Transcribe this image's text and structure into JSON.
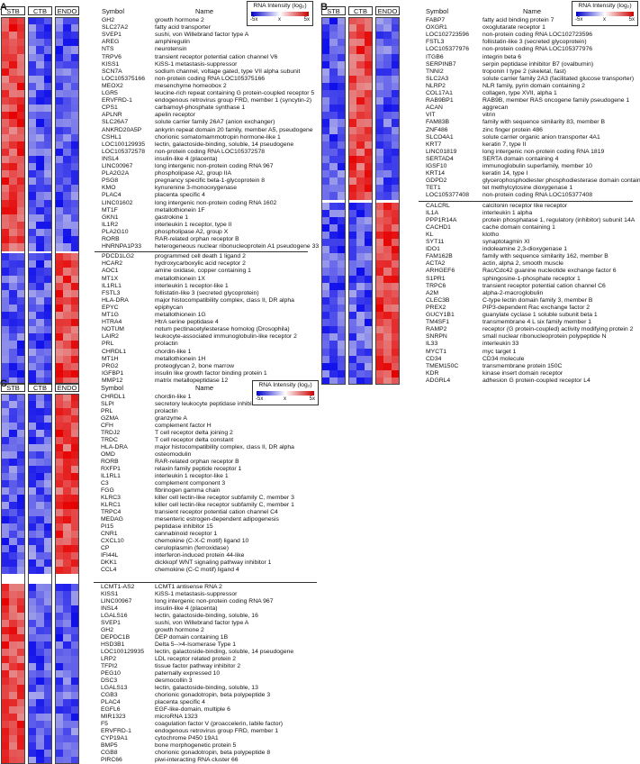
{
  "legend": {
    "title": "RNA Intensity (log₂)",
    "min": "-5x",
    "mid": "x",
    "max": "5x"
  },
  "col_headers": {
    "symbol": "Symbol",
    "name": "Name"
  },
  "panels": [
    {
      "label": "A",
      "groups": [
        "STB",
        "CTB",
        "ENDO"
      ],
      "pattern": [
        "hi",
        "lo",
        "lo"
      ],
      "pattern2": [
        "lo",
        "lo",
        "hi"
      ],
      "split": 32,
      "genes": [
        [
          "GH2",
          "growth hormone 2"
        ],
        [
          "SLC27A2",
          "fatty acid transporter"
        ],
        [
          "SVEP1",
          "sushi, von Willebrand factor type A"
        ],
        [
          "AREG",
          "amphiregulin"
        ],
        [
          "NTS",
          "neurotensin"
        ],
        [
          "TRPV6",
          "transient receptor potential cation channel V6"
        ],
        [
          "KISS1",
          "KiSS-1 metastasis-suppressor"
        ],
        [
          "SCN7A",
          "sodium channel, voltage gated, type VII alpha subunit"
        ],
        [
          "LOC105375166",
          "non-protein coding RNA LOC105375166"
        ],
        [
          "MEOX2",
          "mesenchyme homeobox 2"
        ],
        [
          "LGR5",
          "leucine-rich repeat containing G protein-coupled receptor 5"
        ],
        [
          "ERVFRD-1",
          "endogenous retrovirus group FRD, member 1 (syncytin-2)"
        ],
        [
          "CPS1",
          "carbamoyl-phosphate synthase 1"
        ],
        [
          "APLNR",
          "apelin receptor"
        ],
        [
          "SLC26A7",
          "solute carrier family 26A7 (anion exchanger)"
        ],
        [
          "ANKRD20A5P",
          "ankyrin repeat domain 20 family, member A5, pseudogene"
        ],
        [
          "CSHL1",
          "chorionic somatomammotropin hormone-like 1"
        ],
        [
          "LOC100129935",
          "lectin, galactoside-binding, soluble, 14 pseudogene"
        ],
        [
          "LOC105372578",
          "non-protein coding RNA LOC105372578"
        ],
        [
          "INSL4",
          "insulin-like 4 (placenta)"
        ],
        [
          "LINC00967",
          "long intergenic non-protein coding RNA 967"
        ],
        [
          "PLA2G2A",
          "phospholipase A2, group IIA"
        ],
        [
          "PSG8",
          "pregnancy specific beta-1-glycoprotein 8"
        ],
        [
          "KMO",
          "kynurenine 3-monooxygenase"
        ],
        [
          "PLAC4",
          "placenta specific 4"
        ],
        [
          "LINC01602",
          "long intergenic non-protein coding RNA 1602"
        ],
        [
          "MT1F",
          "metallothionein 1F"
        ],
        [
          "GKN1",
          "gastrokine 1"
        ],
        [
          "IL1R2",
          "interleukin 1 receptor, type II"
        ],
        [
          "PLA2G10",
          "phospholipase A2, group X"
        ],
        [
          "RORB",
          "RAR-related orphan receptor B"
        ],
        [
          "HNRNPA1P33",
          "heterogeneous nuclear ribonucleoprotein A1 pseudogene 33"
        ],
        [
          "PDCD1LG2",
          "programmed cell death 1 ligand 2"
        ],
        [
          "HCAR2",
          "hydroxycarboxylic acid receptor 2"
        ],
        [
          "AOC1",
          "amine oxidase, copper containing 1"
        ],
        [
          "MT1X",
          "metallothionein 1X"
        ],
        [
          "IL1RL1",
          "interleukin 1 receptor-like 1"
        ],
        [
          "FSTL3",
          "follistatin-like 3 (secreted glycoprotein)"
        ],
        [
          "HLA-DRA",
          "major histocompatibility complex, class II, DR alpha"
        ],
        [
          "EPYC",
          "epiphycan"
        ],
        [
          "MT1G",
          "metallothionein 1G"
        ],
        [
          "HTRA4",
          "HtrA serine peptidase 4"
        ],
        [
          "NOTUM",
          "notum pectinacetylesterase homolog (Drosophila)"
        ],
        [
          "LAIR2",
          "leukocyte-associated immunoglobulin-like receptor 2"
        ],
        [
          "PRL",
          "prolactin"
        ],
        [
          "CHRDL1",
          "chordin-like 1"
        ],
        [
          "MT1H",
          "metallothionein 1H"
        ],
        [
          "PRG2",
          "proteoglycan 2, bone marrow"
        ],
        [
          "IGFBP1",
          "insulin like growth factor binding protein 1"
        ],
        [
          "MMP12",
          "matrix metallopeptidase 12"
        ]
      ]
    },
    {
      "label": "B",
      "groups": [
        "STB",
        "CTB",
        "ENDO"
      ],
      "pattern": [
        "lo",
        "hi",
        "lo"
      ],
      "pattern2": [
        "lo",
        "lo",
        "hi"
      ],
      "split": 25,
      "genes": [
        [
          "FABP7",
          "fatty acid binding protein 7"
        ],
        [
          "OXGR1",
          "oxoglutarate receptor 1"
        ],
        [
          "LOC102723596",
          "non-protein coding RNA LOC102723596"
        ],
        [
          "FSTL3",
          "follistatin-like 3 (secreted glycoprotein)"
        ],
        [
          "LOC105377976",
          "non-protein coding RNA LOC105377976"
        ],
        [
          "ITGB6",
          "integrin beta 6"
        ],
        [
          "SERPINB7",
          "serpin peptidase inhibitor B7 (ovalbumin)"
        ],
        [
          "TNNI2",
          "troponin I type 2 (skeletal, fast)"
        ],
        [
          "SLC2A3",
          "solute carrier family 2A3 (facilitated glucose transporter)"
        ],
        [
          "NLRP2",
          "NLR family, pyrin domain containing 2"
        ],
        [
          "COL17A1",
          "collagen, type XVII, alpha 1"
        ],
        [
          "RAB9BP1",
          "RAB9B, member RAS oncogene family pseudogene 1"
        ],
        [
          "ACAN",
          "aggrecan"
        ],
        [
          "VIT",
          "vitrin"
        ],
        [
          "FAM83B",
          "family with sequence similarity 83, member B"
        ],
        [
          "ZNF486",
          "zinc finger protein 486"
        ],
        [
          "SLCO4A1",
          "solute carrier organic anion transporter 4A1"
        ],
        [
          "KRT7",
          "keratin 7, type II"
        ],
        [
          "LINC01819",
          "long intergenic non-protein coding RNA 1819"
        ],
        [
          "SERTAD4",
          "SERTA domain containing 4"
        ],
        [
          "IGSF10",
          "immunoglobulin superfamily, member 10"
        ],
        [
          "KRT14",
          "keratin 14, type I"
        ],
        [
          "GDPD2",
          "glycerophosphodiester phosphodiesterase domain containing 2"
        ],
        [
          "TET1",
          "tet methylcytosine dioxygenase 1"
        ],
        [
          "LOC105377408",
          "non-protein coding RNA LOC105377408"
        ],
        [
          "CALCRL",
          "calcitonin receptor like receptor"
        ],
        [
          "IL1A",
          "interleukin 1 alpha"
        ],
        [
          "PPP1R14A",
          "protein phosphatase 1, regulatory (inhibitor) subunit 14A"
        ],
        [
          "CACHD1",
          "cache domain containing 1"
        ],
        [
          "KL",
          "klotho"
        ],
        [
          "SYT11",
          "synaptotagmin XI"
        ],
        [
          "IDO1",
          "indoleamine 2,3-dioxygenase 1"
        ],
        [
          "FAM162B",
          "family with sequence similarity 162, member B"
        ],
        [
          "ACTA2",
          "actin, alpha 2, smooth muscle"
        ],
        [
          "ARHGEF6",
          "Rac/Cdc42 guanine nucleotide exchange factor 6"
        ],
        [
          "S1PR1",
          "sphingosine-1-phosphate receptor 1"
        ],
        [
          "TRPC6",
          "transient receptor potential cation channel C6"
        ],
        [
          "A2M",
          "alpha-2-macroglobulin"
        ],
        [
          "CLEC3B",
          "C-type lectin domain family 3, member B"
        ],
        [
          "PREX2",
          "PIP3-dependent Rac exchange factor 2"
        ],
        [
          "GUCY1B1",
          "guanylate cyclase 1 soluble subunit beta 1"
        ],
        [
          "TM4SF1",
          "transmembrane 4 L six family member 1"
        ],
        [
          "RAMP2",
          "receptor (G protein-coupled) activity modifying protein 2"
        ],
        [
          "SNRPN",
          "small nuclear ribonucleoprotein polypeptide N"
        ],
        [
          "IL33",
          "interleukin 33"
        ],
        [
          "MYCT1",
          "myc target 1"
        ],
        [
          "CD34",
          "CD34 molecule"
        ],
        [
          "TMEM150C",
          "transmembrane protein 150C"
        ],
        [
          "KDR",
          "kinase insert domain receptor"
        ],
        [
          "ADGRL4",
          "adhesion G protein-coupled receptor L4"
        ]
      ]
    },
    {
      "label": "C",
      "groups": [
        "STB",
        "CTB",
        "ENDO"
      ],
      "pattern": [
        "lo",
        "lo",
        "hi"
      ],
      "pattern2": [
        "hi",
        "lo",
        "lo"
      ],
      "split": 26,
      "genes": [
        [
          "CHRDL1",
          "chordin-like 1"
        ],
        [
          "SLPI",
          "secretory leukocyte peptidase inhibitor"
        ],
        [
          "PRL",
          "prolactin"
        ],
        [
          "GZMA",
          "granzyme A"
        ],
        [
          "CFH",
          "complement factor H"
        ],
        [
          "TRDJ2",
          "T cell receptor delta joining 2"
        ],
        [
          "TRDC",
          "T cell receptor delta constant"
        ],
        [
          "HLA-DRA",
          "major histocompatibility complex, class II, DR alpha"
        ],
        [
          "OMD",
          "osteomodulin"
        ],
        [
          "RORB",
          "RAR-related orphan receptor B"
        ],
        [
          "RXFP1",
          "relaxin family peptide receptor 1"
        ],
        [
          "IL1RL1",
          "interleukin 1 receptor-like 1"
        ],
        [
          "C3",
          "complement component 3"
        ],
        [
          "FGG",
          "fibrinogen gamma chain"
        ],
        [
          "KLRC3",
          "killer cell lectin-like receptor subfamily C, member 3"
        ],
        [
          "KLRC1",
          "killer cell lectin-like receptor subfamily C, member 1"
        ],
        [
          "TRPC4",
          "transient receptor potential cation channel C4"
        ],
        [
          "MEDAG",
          "mesenteric estrogen-dependent adipogenesis"
        ],
        [
          "PI15",
          "peptidase inhibitor 15"
        ],
        [
          "CNR1",
          "cannabinoid receptor 1"
        ],
        [
          "CXCL10",
          "chemokine (C-X-C motif) ligand 10"
        ],
        [
          "CP",
          "ceruloplasmin (ferroxidase)"
        ],
        [
          "IFI44L",
          "interferon-induced protein 44-like"
        ],
        [
          "DKK1",
          "dickkopf WNT signaling pathway inhibitor 1"
        ],
        [
          "CCL4",
          "chemokine (C-C motif) ligand 4"
        ],
        [
          "",
          ""
        ],
        [
          "LCMT1-AS2",
          "LCMT1 antisense RNA 2"
        ],
        [
          "KISS1",
          "KiSS-1 metastasis-suppressor"
        ],
        [
          "LINC00967",
          "long intergenic non-protein coding RNA 967"
        ],
        [
          "INSL4",
          "insulin-like 4 (placenta)"
        ],
        [
          "LGALS16",
          "lectin, galactoside-binding, soluble, 16"
        ],
        [
          "SVEP1",
          "sushi, von Willebrand factor type A"
        ],
        [
          "GH2",
          "growth hormone 2"
        ],
        [
          "DEPDC1B",
          "DEP domain containing 1B"
        ],
        [
          "HSD3B1",
          "Delta 5-->4-Isomerase Type 1"
        ],
        [
          "LOC100129935",
          "lectin, galactoside-binding, soluble, 14 pseudogene"
        ],
        [
          "LRP2",
          "LDL receptor related protein 2"
        ],
        [
          "TFPI2",
          "tissue factor pathway inhibitor 2"
        ],
        [
          "PEG10",
          "paternally expressed 10"
        ],
        [
          "DSC3",
          "desmocollin 3"
        ],
        [
          "LGALS13",
          "lectin, galactoside-binding, soluble, 13"
        ],
        [
          "CGB3",
          "chorionic gonadotropin, beta polypeptide 3"
        ],
        [
          "PLAC4",
          "placenta specific 4"
        ],
        [
          "EGFL6",
          "EGF-like-domain, multiple 6"
        ],
        [
          "MIR1323",
          "microRNA 1323"
        ],
        [
          "F5",
          "coagulation factor V (proaccelerin, labile factor)"
        ],
        [
          "ERVFRD-1",
          "endogenous retrovirus group FRD, member 1"
        ],
        [
          "CYP19A1",
          "cytochrome P450 19A1"
        ],
        [
          "BMP5",
          "bone morphogenetic protein 5"
        ],
        [
          "CGB8",
          "chorionic gonadotropin, beta polypeptide 8"
        ],
        [
          "PIRC66",
          "piwi-interacting RNA cluster 66"
        ]
      ]
    }
  ]
}
